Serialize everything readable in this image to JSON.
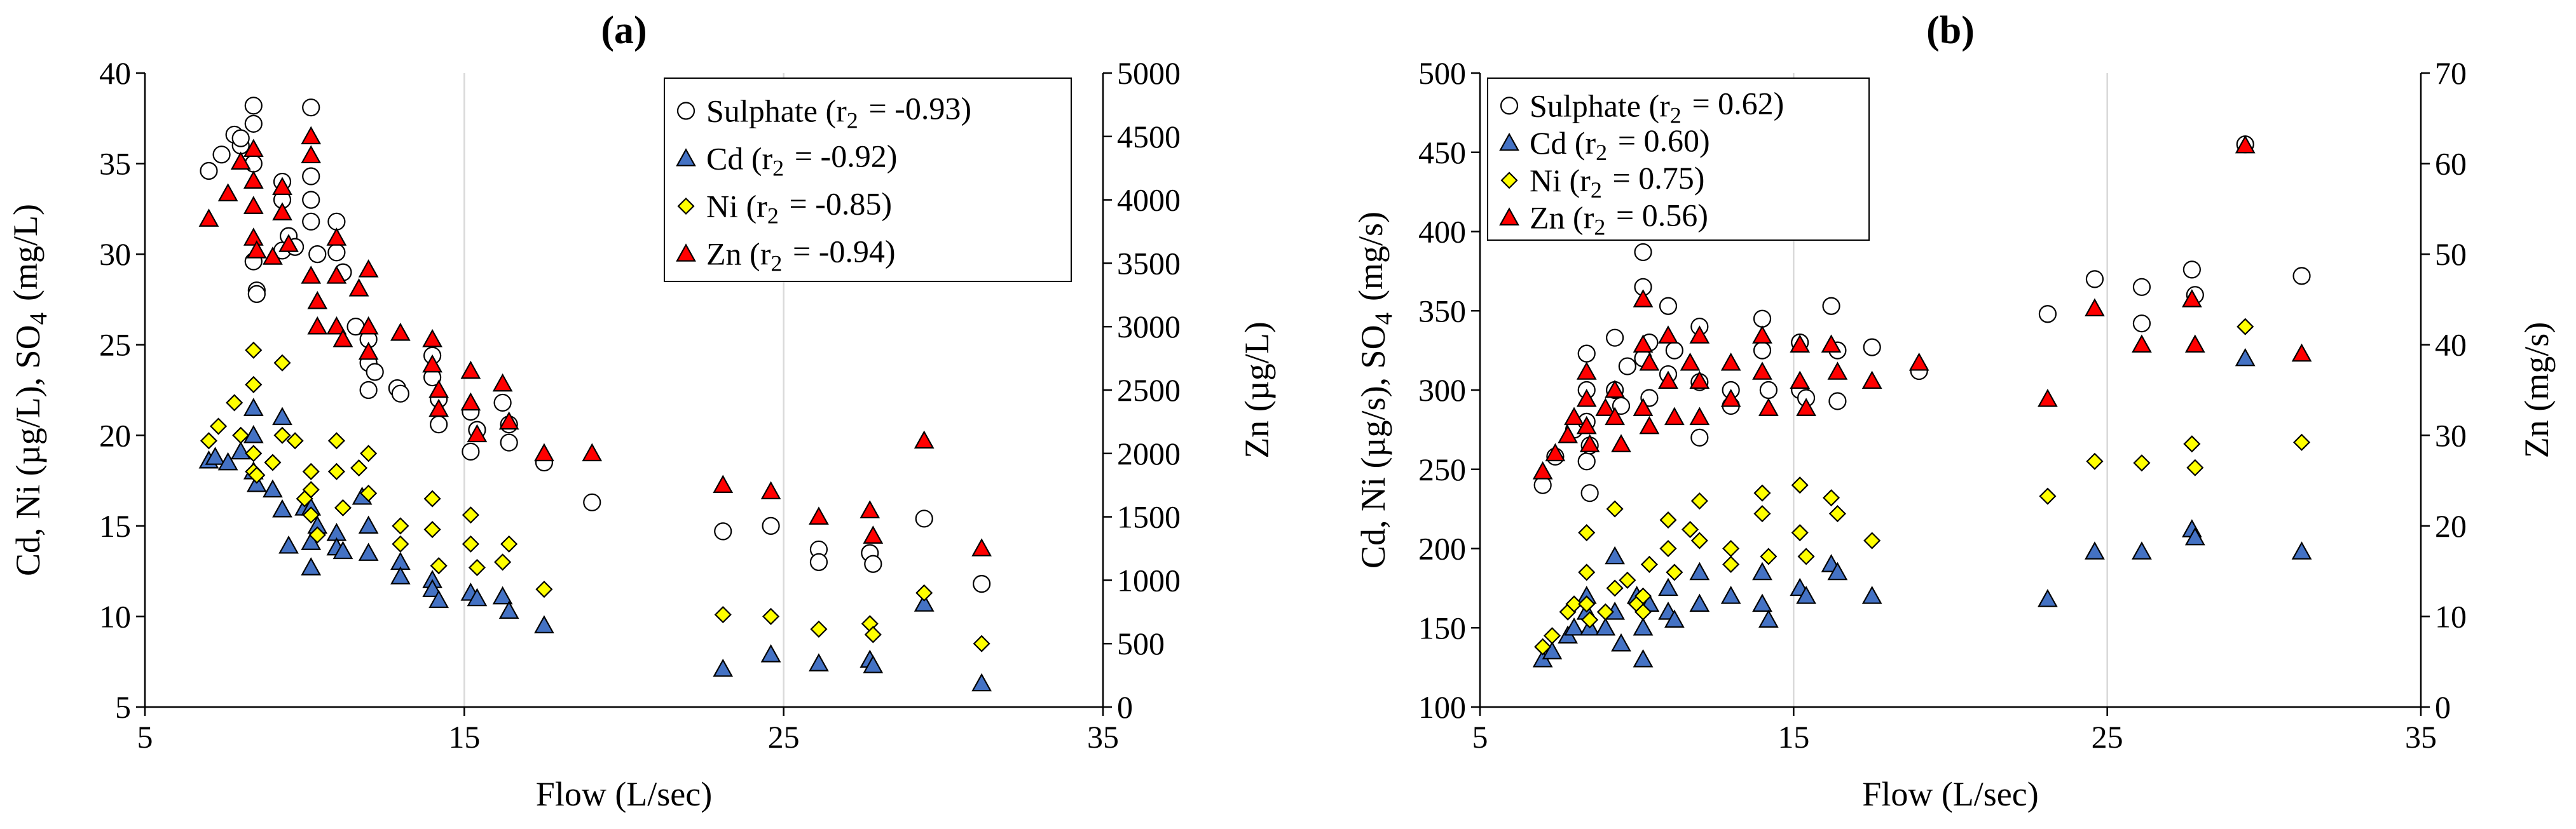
{
  "chart_data": [
    {
      "type": "scatter",
      "title": "(a)",
      "xlabel": "Flow (L/sec)",
      "ylabel": "Cd, Ni (µg/L), SO4 (mg/L)",
      "y2label": "Zn (µg/L)",
      "xlim": [
        5,
        35
      ],
      "ylim": [
        5,
        40
      ],
      "y2lim": [
        0,
        5000
      ],
      "xticks": [
        "5",
        "15",
        "25",
        "35"
      ],
      "yticks": [
        "5",
        "10",
        "15",
        "20",
        "25",
        "30",
        "35",
        "40"
      ],
      "y2ticks": [
        "0",
        "500",
        "1000",
        "1500",
        "2000",
        "2500",
        "3000",
        "3500",
        "4000",
        "4500",
        "5000"
      ],
      "legend_position": "top-right",
      "series": [
        {
          "name": "Sulphate (r2 = -0.93)",
          "marker": "circle",
          "color": "#ffffff",
          "axis": "left",
          "x": [
            7.0,
            7.4,
            7.8,
            8.0,
            8.0,
            8.4,
            8.4,
            8.4,
            8.4,
            8.5,
            8.5,
            9.3,
            9.3,
            9.3,
            9.5,
            9.7,
            10.2,
            10.2,
            10.2,
            10.2,
            10.4,
            11.0,
            11.0,
            11.2,
            11.6,
            12.0,
            12.0,
            12.0,
            12.2,
            12.9,
            13.0,
            14.0,
            14.0,
            14.2,
            14.2,
            15.2,
            15.2,
            15.4,
            16.2,
            16.4,
            16.4,
            17.5,
            19.0,
            23.1,
            24.6,
            26.1,
            26.1,
            27.7,
            27.8,
            29.4,
            31.2
          ],
          "values": [
            34.6,
            35.5,
            36.6,
            36.0,
            36.4,
            38.2,
            37.2,
            35.0,
            29.6,
            28.0,
            27.8,
            34.0,
            33.0,
            30.2,
            31.0,
            30.4,
            38.1,
            34.3,
            33.0,
            31.8,
            30.0,
            31.8,
            30.1,
            29.0,
            26.0,
            25.3,
            24.0,
            22.5,
            23.5,
            22.6,
            22.3,
            24.4,
            23.2,
            22.0,
            20.6,
            21.3,
            19.1,
            20.3,
            21.8,
            20.6,
            19.6,
            18.5,
            16.3,
            14.7,
            15.0,
            13.7,
            13.0,
            13.5,
            12.9,
            15.4,
            11.8
          ]
        },
        {
          "name": "Cd (r2 = -0.92)",
          "marker": "triangle",
          "color": "#4472c4",
          "axis": "left",
          "x": [
            7.0,
            7.2,
            7.6,
            8.0,
            8.4,
            8.4,
            8.4,
            8.5,
            9.0,
            9.3,
            9.3,
            9.5,
            10.0,
            10.2,
            10.2,
            10.2,
            10.4,
            11.0,
            11.0,
            11.2,
            11.8,
            12.0,
            12.0,
            13.0,
            13.0,
            14.0,
            14.0,
            14.2,
            15.2,
            15.4,
            16.2,
            16.4,
            17.5,
            23.1,
            24.6,
            26.1,
            27.7,
            27.8,
            29.4,
            31.2
          ],
          "values": [
            18.6,
            18.8,
            18.5,
            19.1,
            21.5,
            20.0,
            18.0,
            17.3,
            17.0,
            21.0,
            15.9,
            13.9,
            16.0,
            16.0,
            14.1,
            12.7,
            15.0,
            14.6,
            13.8,
            13.6,
            16.6,
            15.0,
            13.5,
            13.0,
            12.2,
            12.0,
            11.5,
            10.9,
            11.3,
            11.0,
            11.1,
            10.3,
            9.5,
            7.1,
            7.9,
            7.4,
            7.6,
            7.3,
            10.7,
            6.3
          ]
        },
        {
          "name": "Ni (r2 = -0.85)",
          "marker": "diamond",
          "color": "#ffff00",
          "axis": "left",
          "x": [
            7.0,
            7.3,
            7.8,
            8.0,
            8.4,
            8.4,
            8.4,
            8.4,
            8.5,
            9.0,
            9.3,
            9.3,
            9.7,
            10.0,
            10.2,
            10.2,
            10.2,
            10.4,
            11.0,
            11.0,
            11.2,
            11.7,
            12.0,
            12.0,
            13.0,
            13.0,
            14.0,
            14.0,
            14.2,
            15.2,
            15.2,
            15.4,
            16.2,
            16.4,
            17.5,
            23.1,
            24.6,
            26.1,
            27.7,
            27.8,
            29.4,
            31.2
          ],
          "values": [
            19.7,
            20.5,
            21.8,
            20.0,
            24.7,
            22.8,
            19.0,
            18.0,
            17.8,
            18.5,
            24.0,
            20.0,
            19.7,
            16.5,
            18.0,
            17.0,
            15.6,
            14.5,
            19.7,
            18.0,
            16.0,
            18.2,
            19.0,
            16.8,
            15.0,
            14.0,
            16.5,
            14.8,
            12.8,
            15.6,
            14.0,
            12.7,
            13.0,
            14.0,
            11.5,
            10.1,
            10.0,
            9.3,
            9.6,
            9.0,
            11.3,
            8.5
          ]
        },
        {
          "name": "Zn (r2 = -0.94)",
          "marker": "triangle",
          "color": "#ff0000",
          "axis": "right",
          "x": [
            7.0,
            7.6,
            8.0,
            8.4,
            8.4,
            8.4,
            8.4,
            8.5,
            9.0,
            9.3,
            9.3,
            9.5,
            10.2,
            10.2,
            10.2,
            10.4,
            10.4,
            11.0,
            11.0,
            11.0,
            11.2,
            11.7,
            12.0,
            12.0,
            12.0,
            13.0,
            14.0,
            14.0,
            14.2,
            14.2,
            15.2,
            15.2,
            15.4,
            16.2,
            16.4,
            17.5,
            19.0,
            23.1,
            24.6,
            26.1,
            27.7,
            27.8,
            29.4,
            31.2
          ],
          "values": [
            3850,
            4050,
            4300,
            4400,
            4150,
            3950,
            3700,
            3600,
            3550,
            4100,
            3900,
            3650,
            4500,
            4350,
            3400,
            3200,
            3000,
            3700,
            3400,
            3000,
            2900,
            3300,
            3450,
            3000,
            2800,
            2950,
            2900,
            2700,
            2500,
            2350,
            2650,
            2400,
            2150,
            2550,
            2250,
            2000,
            2000,
            1750,
            1700,
            1500,
            1550,
            1350,
            2100,
            1250
          ]
        }
      ]
    },
    {
      "type": "scatter",
      "title": "(b)",
      "xlabel": "Flow (L/sec)",
      "ylabel": "Cd, Ni (µg/s), SO4 (mg/s)",
      "y2label": "Zn (mg/s)",
      "xlim": [
        5,
        35
      ],
      "ylim": [
        100,
        500
      ],
      "y2lim": [
        0,
        70
      ],
      "xticks": [
        "5",
        "15",
        "25",
        "35"
      ],
      "yticks": [
        "100",
        "150",
        "200",
        "250",
        "300",
        "350",
        "400",
        "450",
        "500"
      ],
      "y2ticks": [
        "0",
        "10",
        "20",
        "30",
        "40",
        "50",
        "60",
        "70"
      ],
      "legend_position": "top-left",
      "series": [
        {
          "name": "Sulphate (r2 = 0.62)",
          "marker": "circle",
          "color": "#ffffff",
          "axis": "left",
          "x": [
            7.0,
            7.4,
            8.0,
            8.4,
            8.4,
            8.4,
            8.4,
            8.5,
            8.5,
            9.3,
            9.3,
            9.5,
            9.7,
            10.2,
            10.2,
            10.2,
            10.4,
            10.4,
            11.0,
            11.0,
            11.2,
            12.0,
            12.0,
            12.0,
            13.0,
            13.0,
            14.0,
            14.0,
            14.2,
            15.2,
            15.2,
            15.4,
            16.2,
            16.4,
            16.4,
            17.5,
            19.0,
            23.1,
            24.6,
            26.1,
            26.1,
            27.7,
            27.8,
            29.4,
            31.2
          ],
          "values": [
            240,
            258,
            275,
            323,
            300,
            280,
            255,
            235,
            265,
            333,
            300,
            290,
            315,
            387,
            365,
            320,
            295,
            330,
            353,
            310,
            325,
            340,
            305,
            270,
            300,
            290,
            345,
            325,
            300,
            330,
            300,
            295,
            353,
            325,
            293,
            327,
            312,
            348,
            370,
            365,
            342,
            376,
            360,
            455,
            372
          ]
        },
        {
          "name": "Cd (r2 = 0.60)",
          "marker": "triangle",
          "color": "#4472c4",
          "axis": "left",
          "x": [
            7.0,
            7.3,
            7.8,
            8.0,
            8.4,
            8.4,
            8.5,
            9.0,
            9.3,
            9.3,
            9.5,
            10.0,
            10.2,
            10.2,
            10.4,
            11.0,
            11.0,
            11.2,
            12.0,
            12.0,
            13.0,
            14.0,
            14.0,
            14.2,
            15.2,
            15.4,
            16.2,
            16.4,
            17.5,
            23.1,
            24.6,
            26.1,
            27.7,
            27.8,
            29.4,
            31.2
          ],
          "values": [
            130,
            135,
            145,
            150,
            170,
            160,
            150,
            150,
            195,
            160,
            140,
            170,
            150,
            130,
            165,
            175,
            160,
            155,
            185,
            165,
            170,
            185,
            165,
            155,
            175,
            170,
            190,
            185,
            170,
            168,
            198,
            198,
            212,
            207,
            320,
            198
          ]
        },
        {
          "name": "Ni (r2 = 0.75)",
          "marker": "diamond",
          "color": "#ffff00",
          "axis": "left",
          "x": [
            7.0,
            7.3,
            7.8,
            8.0,
            8.4,
            8.4,
            8.4,
            8.5,
            9.0,
            9.3,
            9.3,
            9.7,
            10.0,
            10.2,
            10.2,
            10.4,
            11.0,
            11.0,
            11.2,
            11.7,
            12.0,
            12.0,
            13.0,
            13.0,
            14.0,
            14.0,
            14.2,
            15.2,
            15.2,
            15.4,
            16.2,
            16.4,
            17.5,
            23.1,
            24.6,
            26.1,
            27.7,
            27.8,
            29.4,
            31.2
          ],
          "values": [
            138,
            145,
            160,
            165,
            210,
            185,
            165,
            155,
            160,
            225,
            175,
            180,
            165,
            170,
            160,
            190,
            218,
            200,
            185,
            212,
            230,
            205,
            200,
            190,
            235,
            222,
            195,
            240,
            210,
            195,
            232,
            222,
            205,
            233,
            255,
            254,
            266,
            251,
            340,
            267
          ]
        },
        {
          "name": "Zn (r2 = 0.56)",
          "marker": "triangle",
          "color": "#ff0000",
          "axis": "right",
          "x": [
            7.0,
            7.4,
            7.8,
            8.0,
            8.4,
            8.4,
            8.4,
            8.5,
            9.0,
            9.3,
            9.3,
            9.5,
            10.2,
            10.2,
            10.2,
            10.4,
            10.4,
            11.0,
            11.0,
            11.2,
            11.7,
            12.0,
            12.0,
            12.0,
            13.0,
            13.0,
            14.0,
            14.0,
            14.2,
            15.2,
            15.2,
            15.4,
            16.2,
            16.4,
            17.5,
            19.0,
            23.1,
            24.6,
            26.1,
            27.7,
            27.8,
            29.4,
            31.2
          ],
          "values": [
            26,
            28,
            30,
            32,
            37,
            34,
            31,
            29,
            33,
            35,
            32,
            29,
            45,
            40,
            33,
            38,
            31,
            41,
            36,
            32,
            38,
            41,
            36,
            32,
            38,
            34,
            41,
            37,
            33,
            40,
            36,
            33,
            40,
            37,
            36,
            38,
            34,
            44,
            40,
            45,
            40,
            62,
            39
          ]
        }
      ]
    }
  ]
}
